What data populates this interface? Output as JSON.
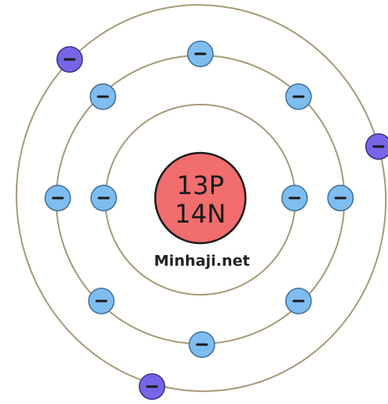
{
  "nucleus": {
    "protons": "13P",
    "neutrons": "14N"
  },
  "watermark": "Minhaji.net"
}
